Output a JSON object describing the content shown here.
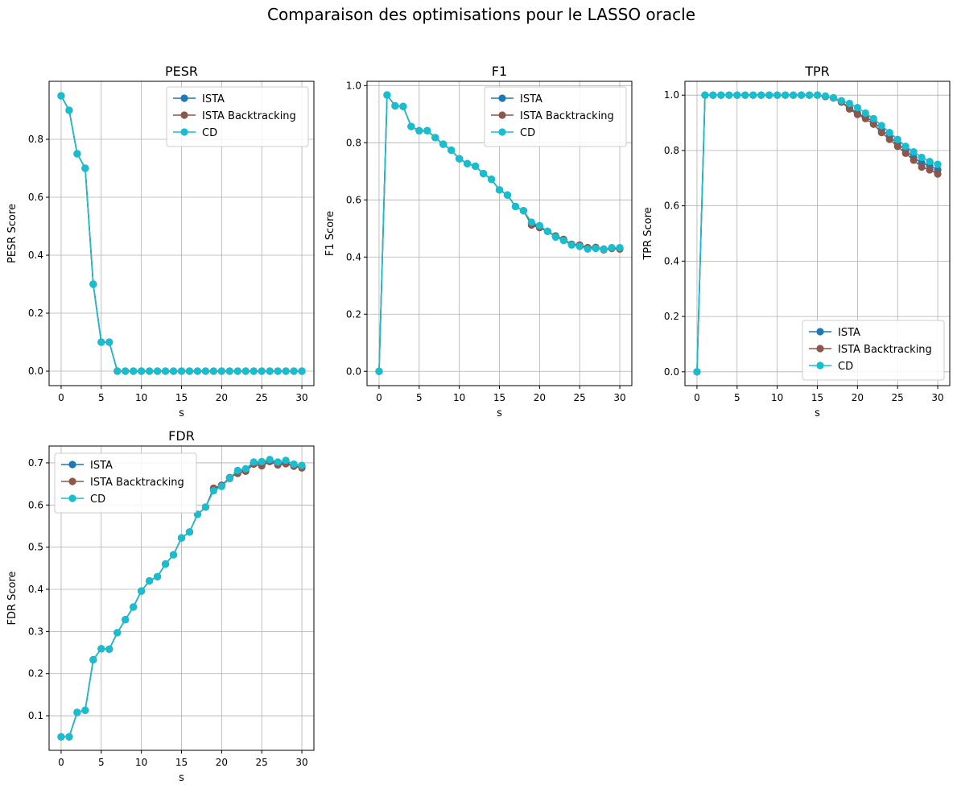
{
  "suptitle": "Comparaison des optimisations pour le LASSO oracle",
  "chart_data": [
    {
      "type": "line",
      "title": "PESR",
      "xlabel": "s",
      "ylabel": "PESR Score",
      "xlim": [
        -1.5,
        31.5
      ],
      "ylim": [
        -0.05,
        1.0
      ],
      "xticks": [
        0,
        5,
        10,
        15,
        20,
        25,
        30
      ],
      "yticks": [
        0.0,
        0.2,
        0.4,
        0.6,
        0.8
      ],
      "ytick_decimals": 1,
      "grid": true,
      "legend": "upper right",
      "x": [
        0,
        1,
        2,
        3,
        4,
        5,
        6,
        7,
        8,
        9,
        10,
        11,
        12,
        13,
        14,
        15,
        16,
        17,
        18,
        19,
        20,
        21,
        22,
        23,
        24,
        25,
        26,
        27,
        28,
        29,
        30
      ],
      "series": [
        {
          "name": "ISTA",
          "color": "#1f77b4",
          "values": [
            0.95,
            0.9,
            0.75,
            0.7,
            0.3,
            0.1,
            0.1,
            0,
            0,
            0,
            0,
            0,
            0,
            0,
            0,
            0,
            0,
            0,
            0,
            0,
            0,
            0,
            0,
            0,
            0,
            0,
            0,
            0,
            0,
            0,
            0
          ]
        },
        {
          "name": "ISTA Backtracking",
          "color": "#8c564b",
          "values": [
            0.95,
            0.9,
            0.75,
            0.7,
            0.3,
            0.1,
            0.1,
            0,
            0,
            0,
            0,
            0,
            0,
            0,
            0,
            0,
            0,
            0,
            0,
            0,
            0,
            0,
            0,
            0,
            0,
            0,
            0,
            0,
            0,
            0,
            0
          ]
        },
        {
          "name": "CD",
          "color": "#17becf",
          "values": [
            0.95,
            0.9,
            0.75,
            0.7,
            0.3,
            0.1,
            0.1,
            0,
            0,
            0,
            0,
            0,
            0,
            0,
            0,
            0,
            0,
            0,
            0,
            0,
            0,
            0,
            0,
            0,
            0,
            0,
            0,
            0,
            0,
            0,
            0
          ]
        }
      ]
    },
    {
      "type": "line",
      "title": "F1",
      "xlabel": "s",
      "ylabel": "F1 Score",
      "xlim": [
        -1.5,
        31.5
      ],
      "ylim": [
        -0.05,
        1.015
      ],
      "xticks": [
        0,
        5,
        10,
        15,
        20,
        25,
        30
      ],
      "yticks": [
        0.0,
        0.2,
        0.4,
        0.6,
        0.8,
        1.0
      ],
      "ytick_decimals": 1,
      "grid": true,
      "legend": "upper right",
      "x": [
        0,
        1,
        2,
        3,
        4,
        5,
        6,
        7,
        8,
        9,
        10,
        11,
        12,
        13,
        14,
        15,
        16,
        17,
        18,
        19,
        20,
        21,
        22,
        23,
        24,
        25,
        26,
        27,
        28,
        29,
        30
      ],
      "series": [
        {
          "name": "ISTA",
          "color": "#1f77b4",
          "values": [
            0.0,
            0.967,
            0.929,
            0.927,
            0.857,
            0.842,
            0.842,
            0.818,
            0.795,
            0.774,
            0.744,
            0.727,
            0.718,
            0.692,
            0.672,
            0.635,
            0.617,
            0.577,
            0.562,
            0.517,
            0.505,
            0.49,
            0.472,
            0.46,
            0.444,
            0.44,
            0.433,
            0.433,
            0.428,
            0.431,
            0.431
          ]
        },
        {
          "name": "ISTA Backtracking",
          "color": "#8c564b",
          "values": [
            0.0,
            0.967,
            0.929,
            0.927,
            0.857,
            0.842,
            0.842,
            0.818,
            0.795,
            0.774,
            0.744,
            0.727,
            0.718,
            0.692,
            0.672,
            0.635,
            0.617,
            0.577,
            0.562,
            0.512,
            0.503,
            0.49,
            0.474,
            0.462,
            0.445,
            0.442,
            0.433,
            0.434,
            0.425,
            0.43,
            0.428
          ]
        },
        {
          "name": "CD",
          "color": "#17becf",
          "values": [
            0.0,
            0.967,
            0.929,
            0.927,
            0.857,
            0.842,
            0.842,
            0.818,
            0.795,
            0.774,
            0.744,
            0.727,
            0.718,
            0.692,
            0.672,
            0.635,
            0.617,
            0.577,
            0.562,
            0.522,
            0.51,
            0.49,
            0.47,
            0.458,
            0.442,
            0.437,
            0.428,
            0.43,
            0.427,
            0.433,
            0.433
          ]
        }
      ]
    },
    {
      "type": "line",
      "title": "TPR",
      "xlabel": "s",
      "ylabel": "TPR Score",
      "xlim": [
        -1.5,
        31.5
      ],
      "ylim": [
        -0.05,
        1.05
      ],
      "xticks": [
        0,
        5,
        10,
        15,
        20,
        25,
        30
      ],
      "yticks": [
        0.0,
        0.2,
        0.4,
        0.6,
        0.8,
        1.0
      ],
      "ytick_decimals": 1,
      "grid": true,
      "legend": "lower right",
      "x": [
        0,
        1,
        2,
        3,
        4,
        5,
        6,
        7,
        8,
        9,
        10,
        11,
        12,
        13,
        14,
        15,
        16,
        17,
        18,
        19,
        20,
        21,
        22,
        23,
        24,
        25,
        26,
        27,
        28,
        29,
        30
      ],
      "series": [
        {
          "name": "ISTA",
          "color": "#1f77b4",
          "values": [
            0,
            1,
            1,
            1,
            1,
            1,
            1,
            1,
            1,
            1,
            1,
            1,
            1,
            1,
            1,
            1,
            0.995,
            0.99,
            0.975,
            0.955,
            0.935,
            0.92,
            0.905,
            0.875,
            0.85,
            0.825,
            0.8,
            0.775,
            0.755,
            0.745,
            0.73
          ]
        },
        {
          "name": "ISTA Backtracking",
          "color": "#8c564b",
          "values": [
            0,
            1,
            1,
            1,
            1,
            1,
            1,
            1,
            1,
            1,
            1,
            1,
            1,
            1,
            1,
            1,
            0.995,
            0.99,
            0.975,
            0.95,
            0.93,
            0.915,
            0.895,
            0.865,
            0.84,
            0.815,
            0.79,
            0.765,
            0.74,
            0.73,
            0.715
          ]
        },
        {
          "name": "CD",
          "color": "#17becf",
          "values": [
            0,
            1,
            1,
            1,
            1,
            1,
            1,
            1,
            1,
            1,
            1,
            1,
            1,
            1,
            1,
            1,
            0.997,
            0.99,
            0.98,
            0.97,
            0.955,
            0.935,
            0.915,
            0.89,
            0.865,
            0.84,
            0.815,
            0.795,
            0.775,
            0.76,
            0.75
          ]
        }
      ]
    },
    {
      "type": "line",
      "title": "FDR",
      "xlabel": "s",
      "ylabel": "FDR Score",
      "xlim": [
        -1.5,
        31.5
      ],
      "ylim": [
        0.018,
        0.74
      ],
      "xticks": [
        0,
        5,
        10,
        15,
        20,
        25,
        30
      ],
      "yticks": [
        0.1,
        0.2,
        0.3,
        0.4,
        0.5,
        0.6,
        0.7
      ],
      "ytick_decimals": 1,
      "grid": true,
      "legend": "upper left",
      "x": [
        0,
        1,
        2,
        3,
        4,
        5,
        6,
        7,
        8,
        9,
        10,
        11,
        12,
        13,
        14,
        15,
        16,
        17,
        18,
        19,
        20,
        21,
        22,
        23,
        24,
        25,
        26,
        27,
        28,
        29,
        30
      ],
      "series": [
        {
          "name": "ISTA",
          "color": "#1f77b4",
          "values": [
            0.05,
            0.05,
            0.108,
            0.113,
            0.233,
            0.259,
            0.258,
            0.297,
            0.328,
            0.358,
            0.396,
            0.42,
            0.43,
            0.46,
            0.482,
            0.522,
            0.536,
            0.578,
            0.595,
            0.637,
            0.645,
            0.663,
            0.678,
            0.685,
            0.7,
            0.7,
            0.705,
            0.7,
            0.7,
            0.693,
            0.69
          ]
        },
        {
          "name": "ISTA Backtracking",
          "color": "#8c564b",
          "values": [
            0.05,
            0.05,
            0.108,
            0.113,
            0.233,
            0.259,
            0.258,
            0.297,
            0.328,
            0.358,
            0.396,
            0.42,
            0.43,
            0.46,
            0.482,
            0.522,
            0.536,
            0.578,
            0.595,
            0.64,
            0.647,
            0.665,
            0.675,
            0.68,
            0.697,
            0.693,
            0.703,
            0.695,
            0.698,
            0.692,
            0.688
          ]
        },
        {
          "name": "CD",
          "color": "#17becf",
          "values": [
            0.05,
            0.05,
            0.108,
            0.113,
            0.233,
            0.259,
            0.258,
            0.297,
            0.328,
            0.358,
            0.396,
            0.42,
            0.43,
            0.46,
            0.482,
            0.522,
            0.536,
            0.578,
            0.595,
            0.634,
            0.644,
            0.664,
            0.682,
            0.686,
            0.702,
            0.703,
            0.708,
            0.702,
            0.706,
            0.697,
            0.694
          ]
        }
      ]
    }
  ]
}
